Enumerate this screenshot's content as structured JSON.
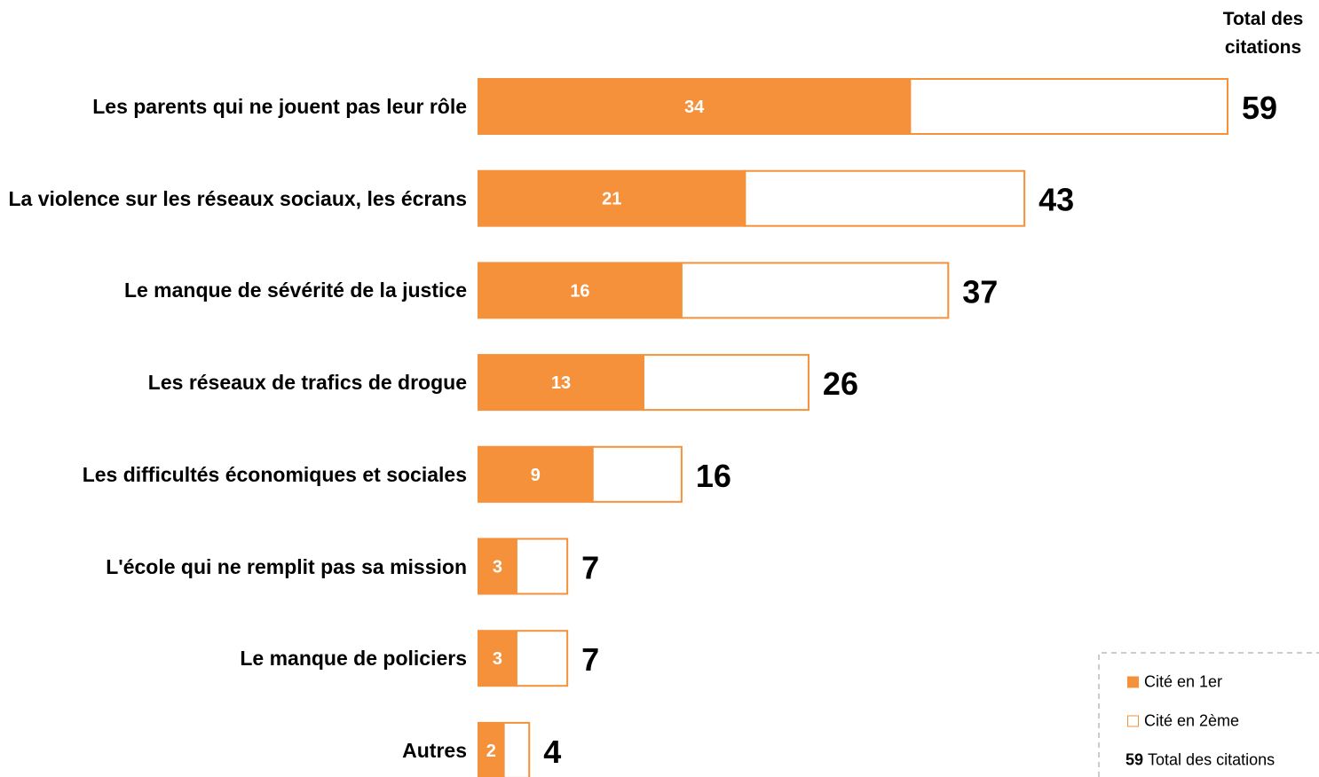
{
  "chart_data": {
    "type": "stacked-bar-horizontal",
    "categories": [
      "Les parents qui ne jouent pas leur rôle",
      "La violence sur les réseaux sociaux, les écrans",
      "Le manque de sévérité de la justice",
      "Les réseaux de trafics de drogue",
      "Les difficultés économiques et sociales",
      "L'école qui ne remplit pas sa mission",
      "Le manque de policiers",
      "Autres"
    ],
    "series": [
      {
        "name": "Cité en 1er",
        "color": "#f5913a",
        "values": [
          34,
          21,
          16,
          13,
          9,
          3,
          3,
          2
        ]
      },
      {
        "name": "Cité en 2ème",
        "color": "#ffffff",
        "values": [
          25,
          22,
          21,
          13,
          7,
          4,
          4,
          2
        ]
      }
    ],
    "totals": [
      59,
      43,
      37,
      26,
      16,
      7,
      7,
      4
    ],
    "totals_header": "Total des citations",
    "totals_legend": "Total des citations",
    "border_color": "#f5913a"
  }
}
